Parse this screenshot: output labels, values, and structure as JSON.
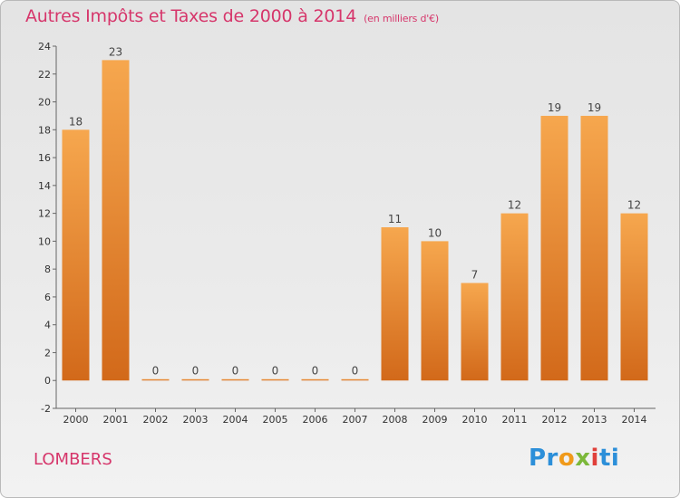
{
  "chart_data": {
    "type": "bar",
    "title": "Autres Impôts et Taxes de 2000 à 2014",
    "subtitle": "(en milliers d'€)",
    "categories": [
      "2000",
      "2001",
      "2002",
      "2003",
      "2004",
      "2005",
      "2006",
      "2007",
      "2008",
      "2009",
      "2010",
      "2011",
      "2012",
      "2013",
      "2014"
    ],
    "values": [
      18,
      23,
      0,
      0,
      0,
      0,
      0,
      0,
      11,
      10,
      7,
      12,
      19,
      19,
      12
    ],
    "ylim": [
      -2,
      24
    ],
    "yticks": [
      -2,
      0,
      2,
      4,
      6,
      8,
      10,
      12,
      14,
      16,
      18,
      20,
      22,
      24
    ],
    "grid": false,
    "bar_color": "#f09a3c",
    "bar_color_dark": "#d8711c"
  },
  "footer": {
    "place": "LOMBERS",
    "logo": {
      "p1": "Pr",
      "p2": "o",
      "p3": "x",
      "p4": "i",
      "p5": "ti"
    }
  }
}
